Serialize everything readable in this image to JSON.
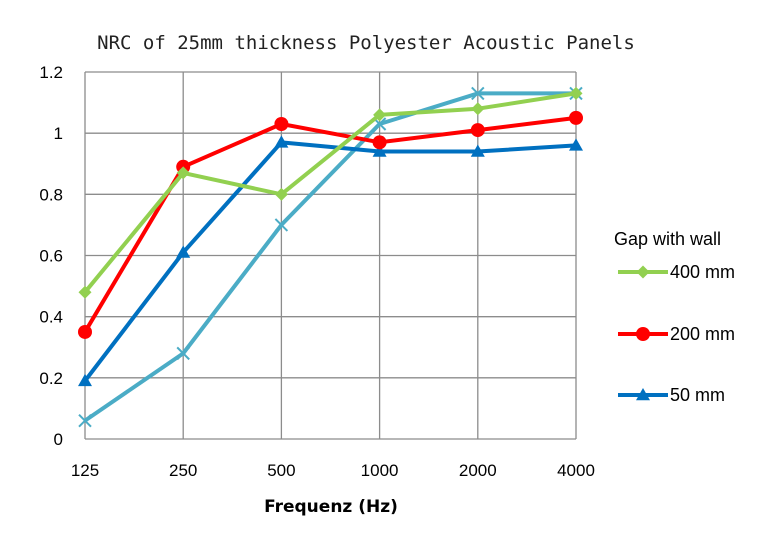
{
  "chart_data": {
    "type": "line",
    "title": "NRC of 25mm thickness Polyester Acoustic Panels",
    "xlabel": "Frequenz (Hz)",
    "ylabel": "",
    "categories": [
      "125",
      "250",
      "500",
      "1000",
      "2000",
      "4000"
    ],
    "ylim": [
      0,
      1.2
    ],
    "yticks": [
      "0",
      "0.2",
      "0.4",
      "0.6",
      "0.8",
      "1",
      "1.2"
    ],
    "grid": true,
    "legend": {
      "title": "Gap with wall",
      "position": "right"
    },
    "series": [
      {
        "name": "400 mm",
        "color": "#92D050",
        "marker": "diamond",
        "values": [
          0.48,
          0.87,
          0.8,
          1.06,
          1.08,
          1.13
        ]
      },
      {
        "name": "200 mm",
        "color": "#FF0000",
        "marker": "circle",
        "values": [
          0.35,
          0.89,
          1.03,
          0.97,
          1.01,
          1.05
        ]
      },
      {
        "name": "50 mm",
        "color": "#0070C0",
        "marker": "triangle",
        "values": [
          0.19,
          0.61,
          0.97,
          0.94,
          0.94,
          0.96
        ]
      },
      {
        "name": "",
        "color": "#4BACC6",
        "marker": "x",
        "values": [
          0.06,
          0.28,
          0.7,
          1.03,
          1.13,
          1.13
        ]
      }
    ]
  }
}
